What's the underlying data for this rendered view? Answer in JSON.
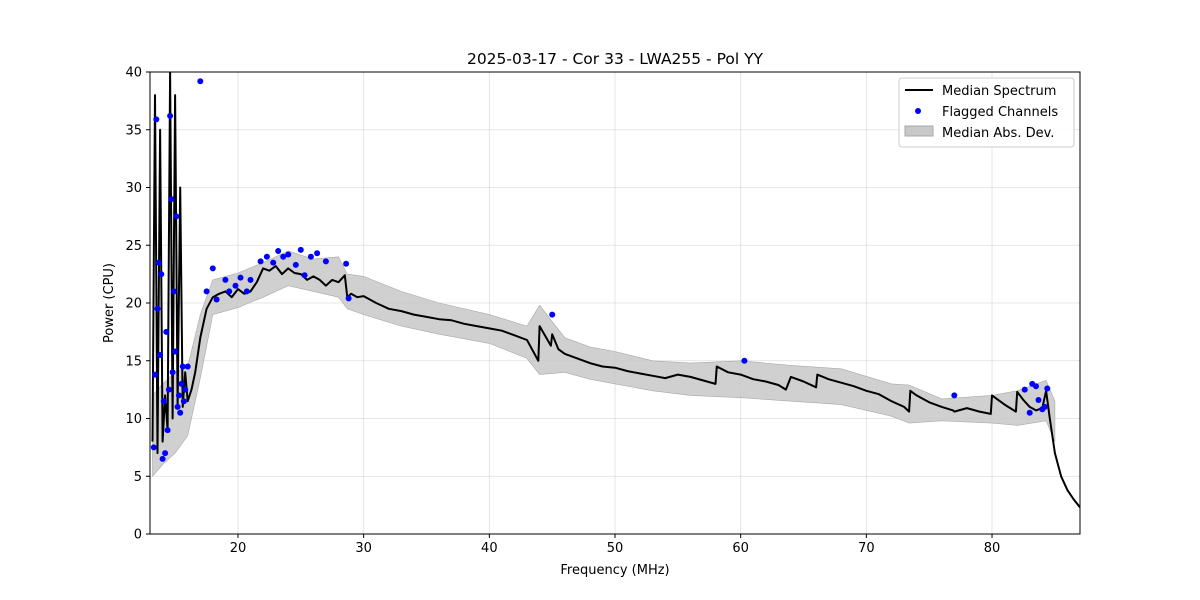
{
  "chart_data": {
    "type": "line",
    "title": "2025-03-17 - Cor 33 - LWA255 - Pol YY",
    "xlabel": "Frequency (MHz)",
    "ylabel": "Power (CPU)",
    "xlim": [
      13,
      87
    ],
    "ylim": [
      0,
      40
    ],
    "x_ticks": [
      "20",
      "30",
      "40",
      "50",
      "60",
      "70",
      "80"
    ],
    "y_ticks": [
      "0",
      "5",
      "10",
      "15",
      "20",
      "25",
      "30",
      "35",
      "40"
    ],
    "grid": true,
    "legend_position": "top-right",
    "legend": [
      "Median Spectrum",
      "Flagged Channels",
      "Median Abs. Dev."
    ],
    "colors": {
      "median": "#000000",
      "flagged": "#0000ff",
      "mad": "#c8c8c8"
    },
    "series": [
      {
        "name": "Median Spectrum",
        "x": [
          13.2,
          13.4,
          13.6,
          13.8,
          14.0,
          14.2,
          14.4,
          14.6,
          14.8,
          15.0,
          15.2,
          15.4,
          15.6,
          15.8,
          16.0,
          16.3,
          16.6,
          17.0,
          17.5,
          18.0,
          18.5,
          19.0,
          19.5,
          20.0,
          20.5,
          21.0,
          21.5,
          22.0,
          22.5,
          23.0,
          23.5,
          24.0,
          24.5,
          25.0,
          25.5,
          26.0,
          26.5,
          27.0,
          27.5,
          28.0,
          28.5,
          28.7,
          29.0,
          29.5,
          30.0,
          31.0,
          32.0,
          33.0,
          34.0,
          35.0,
          36.0,
          37.0,
          38.0,
          39.0,
          40.0,
          41.0,
          42.0,
          43.0,
          43.9,
          44.0,
          44.9,
          45.0,
          45.5,
          46.0,
          47.0,
          48.0,
          49.0,
          50.0,
          51.0,
          52.0,
          53.0,
          54.0,
          55.0,
          56.0,
          57.0,
          58.0,
          58.1,
          59.0,
          60.0,
          61.0,
          62.0,
          63.0,
          63.6,
          64.0,
          65.0,
          66.0,
          66.1,
          67.0,
          68.0,
          69.0,
          70.0,
          71.0,
          72.0,
          73.0,
          73.4,
          73.5,
          74.0,
          75.0,
          76.0,
          76.9,
          77.0,
          78.0,
          79.0,
          79.9,
          80.0,
          81.0,
          81.9,
          82.0,
          82.5,
          83.0,
          83.5,
          84.0,
          84.3,
          84.6,
          85.0,
          85.5,
          86.0,
          86.5,
          87.0
        ],
        "values": [
          8.0,
          38.0,
          7.0,
          35.0,
          8.0,
          12.0,
          9.0,
          40.0,
          10.0,
          38.0,
          11.0,
          30.0,
          11.0,
          14.0,
          11.5,
          12.5,
          14.0,
          17.0,
          19.5,
          20.5,
          20.8,
          21.0,
          20.5,
          21.2,
          20.8,
          21.0,
          21.8,
          23.0,
          22.8,
          23.2,
          22.5,
          23.0,
          22.6,
          22.5,
          22.0,
          22.3,
          22.0,
          21.5,
          22.0,
          21.8,
          22.4,
          20.5,
          20.8,
          20.5,
          20.6,
          20.0,
          19.5,
          19.3,
          19.0,
          18.8,
          18.6,
          18.5,
          18.2,
          18.0,
          17.8,
          17.6,
          17.2,
          16.8,
          15.0,
          18.0,
          16.3,
          17.3,
          16.0,
          15.6,
          15.2,
          14.8,
          14.5,
          14.4,
          14.1,
          13.9,
          13.7,
          13.5,
          13.8,
          13.6,
          13.3,
          13.0,
          14.5,
          14.0,
          13.8,
          13.4,
          13.2,
          12.9,
          12.5,
          13.6,
          13.2,
          12.7,
          13.8,
          13.4,
          13.1,
          12.8,
          12.4,
          12.1,
          11.5,
          11.0,
          10.6,
          12.4,
          12.0,
          11.4,
          11.0,
          10.7,
          10.6,
          10.9,
          10.6,
          10.4,
          12.0,
          11.2,
          10.6,
          12.3,
          11.6,
          11.0,
          10.7,
          10.9,
          12.4,
          10.0,
          7.0,
          5.0,
          3.8,
          3.0,
          2.3
        ]
      },
      {
        "name": "Median Abs. Dev.",
        "x": [
          13.2,
          14.0,
          15.0,
          16.0,
          17.0,
          18.0,
          20.0,
          22.0,
          24.0,
          26.0,
          28.0,
          28.7,
          30.0,
          33.0,
          36.0,
          40.0,
          43.0,
          44.0,
          46.0,
          48.0,
          50.0,
          53.0,
          56.0,
          60.0,
          64.0,
          68.0,
          72.0,
          73.4,
          76.0,
          80.0,
          82.0,
          84.3,
          85.0
        ],
        "lower": [
          5.0,
          6.0,
          7.0,
          8.5,
          13.5,
          19.0,
          19.6,
          20.5,
          21.5,
          21.0,
          20.5,
          19.5,
          19.0,
          18.0,
          17.3,
          16.5,
          15.2,
          13.8,
          14.0,
          13.4,
          13.0,
          12.4,
          12.0,
          11.8,
          11.5,
          11.2,
          10.2,
          9.6,
          9.8,
          9.6,
          9.4,
          9.8,
          8.0
        ],
        "upper": [
          12.0,
          13.0,
          14.0,
          14.5,
          19.0,
          22.0,
          22.6,
          23.5,
          24.5,
          23.8,
          24.0,
          22.5,
          22.3,
          21.0,
          20.0,
          19.0,
          18.0,
          19.8,
          17.0,
          16.2,
          15.8,
          15.0,
          14.8,
          15.0,
          14.6,
          14.3,
          13.0,
          12.9,
          11.7,
          12.0,
          12.4,
          13.3,
          11.5
        ]
      },
      {
        "name": "Flagged Channels",
        "x": [
          13.3,
          13.4,
          13.5,
          13.6,
          13.7,
          13.8,
          13.9,
          14.0,
          14.1,
          14.2,
          14.3,
          14.4,
          14.5,
          14.6,
          14.7,
          14.8,
          14.9,
          15.0,
          15.1,
          15.2,
          15.3,
          15.4,
          15.5,
          15.6,
          15.7,
          15.8,
          16.0,
          17.0,
          17.5,
          18.0,
          18.3,
          19.0,
          19.3,
          19.8,
          20.2,
          20.7,
          21.0,
          21.8,
          22.3,
          22.8,
          23.2,
          23.6,
          24.0,
          24.6,
          25.0,
          25.3,
          25.8,
          26.3,
          27.0,
          28.6,
          28.8,
          45.0,
          60.3,
          77.0,
          82.6,
          83.0,
          83.2,
          83.5,
          83.7,
          84.0,
          84.2,
          84.4
        ],
        "values": [
          7.5,
          13.8,
          35.9,
          19.5,
          23.5,
          15.5,
          22.5,
          6.5,
          11.5,
          7.0,
          17.5,
          9.0,
          12.5,
          36.2,
          29.0,
          14.0,
          21.0,
          15.8,
          27.5,
          11.0,
          12.0,
          10.5,
          13.0,
          14.5,
          11.5,
          12.5,
          14.5,
          39.2,
          21.0,
          23.0,
          20.3,
          22.0,
          21.0,
          21.5,
          22.2,
          21.0,
          22.0,
          23.6,
          24.0,
          23.5,
          24.5,
          24.0,
          24.2,
          23.3,
          24.6,
          22.4,
          24.0,
          24.3,
          23.6,
          23.4,
          20.4,
          19.0,
          15.0,
          12.0,
          12.5,
          10.5,
          13.0,
          12.8,
          11.6,
          10.8,
          11.0,
          12.6
        ]
      }
    ]
  }
}
